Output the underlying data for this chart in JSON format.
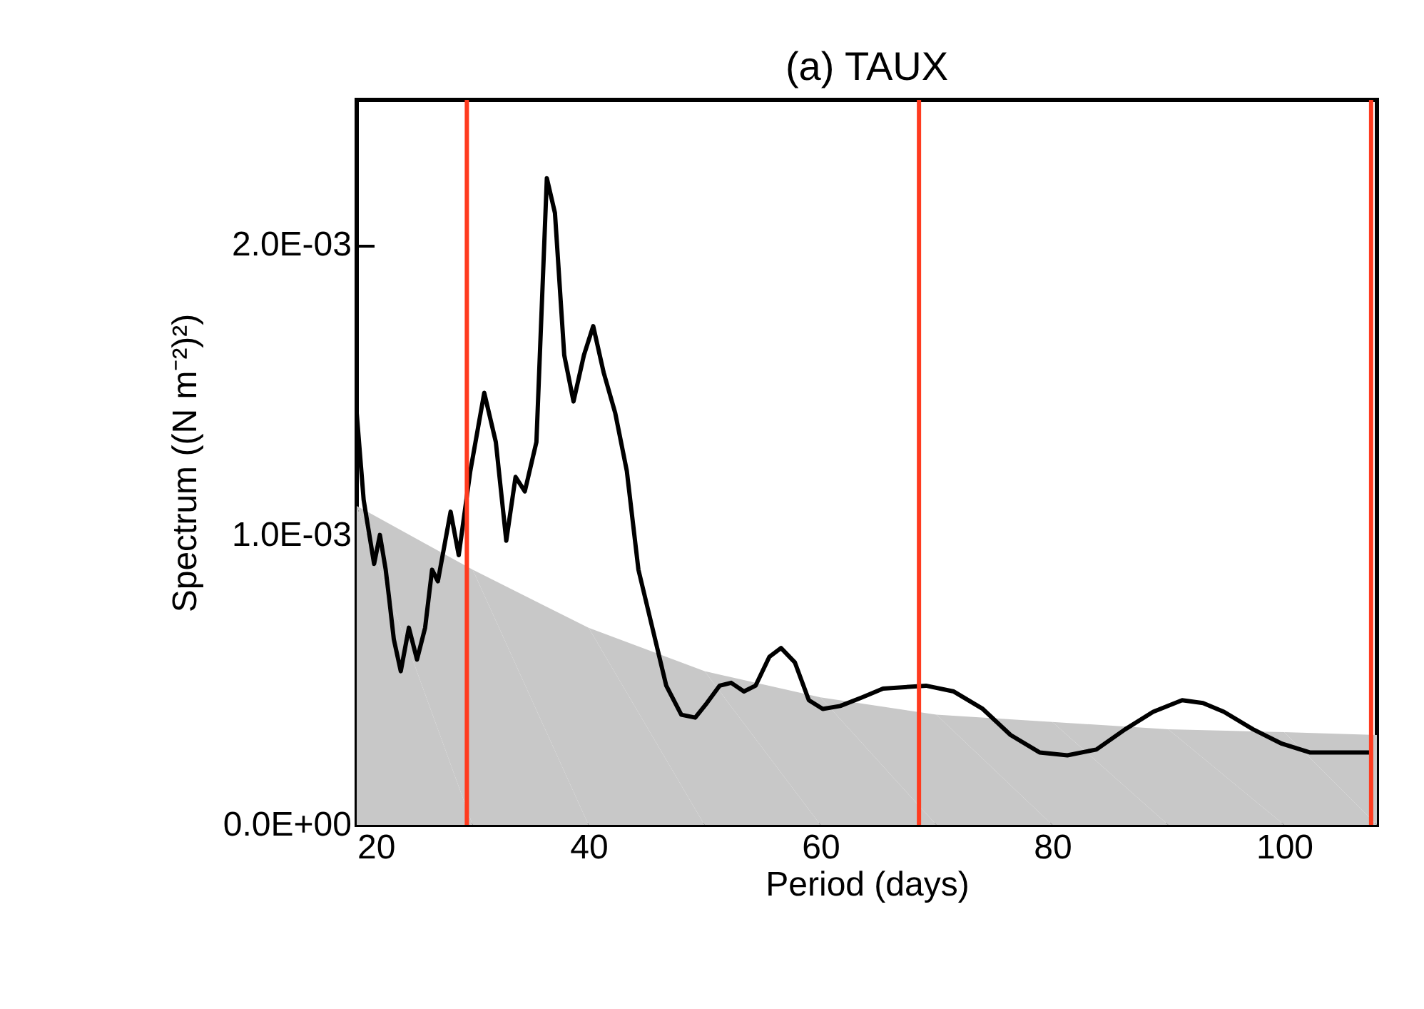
{
  "chart_data": {
    "type": "line",
    "title": "(a)  TAUX",
    "xlabel": "Period (days)",
    "ylabel": "Spectrum ((N m⁻²)²)",
    "xlim": [
      20,
      108
    ],
    "xticks": [
      20,
      40,
      60,
      80,
      100
    ],
    "ylim": [
      0,
      0.0025
    ],
    "yticks": [
      {
        "value": 0,
        "label": "0.0E+00"
      },
      {
        "value": 0.001,
        "label": "1.0E-03"
      },
      {
        "value": 0.002,
        "label": "2.0E-03"
      }
    ],
    "grid": false,
    "series": [
      {
        "type": "area",
        "color": "#c8c8c8",
        "x": [
          20,
          30,
          40,
          50,
          60,
          70,
          80,
          90,
          100,
          108
        ],
        "values": [
          0.0011,
          0.00088,
          0.00068,
          0.00053,
          0.00044,
          0.00038,
          0.000355,
          0.00033,
          0.00032,
          0.00031
        ]
      },
      {
        "color": "#000000",
        "x": [
          20,
          20.6,
          21.5,
          22,
          22.5,
          22.8,
          23.2,
          23.8,
          24.5,
          25.2,
          25.9,
          26.5,
          27,
          28.1,
          28.8,
          29.8,
          31,
          32,
          32.9,
          33.7,
          34.5,
          35.5,
          36.4,
          37.1,
          37.9,
          38.7,
          39.6,
          40.4,
          41.3,
          42.3,
          43.3,
          44.3,
          45.5,
          46.7,
          48,
          49.2,
          50.2,
          51.3,
          52.3,
          53.4,
          54.4,
          55.6,
          56.6,
          57.8,
          59,
          60.2,
          61.7,
          63.6,
          65.4,
          69.1,
          71.5,
          74,
          76.4,
          78.9,
          81.3,
          83.8,
          86.3,
          88.7,
          91.2,
          93,
          94.8,
          97.3,
          99.8,
          102.2,
          104.7,
          107.5
        ],
        "values": [
          0.00142,
          0.00112,
          0.0009,
          0.001,
          0.00088,
          0.00078,
          0.00064,
          0.00053,
          0.00068,
          0.00057,
          0.00068,
          0.00088,
          0.00084,
          0.00108,
          0.00093,
          0.00122,
          0.00149,
          0.00132,
          0.00098,
          0.0012,
          0.00115,
          0.00132,
          0.00223,
          0.00211,
          0.00162,
          0.00146,
          0.00162,
          0.00172,
          0.00156,
          0.00142,
          0.00122,
          0.00088,
          0.00068,
          0.00048,
          0.00038,
          0.00037,
          0.00042,
          0.00048,
          0.00049,
          0.00046,
          0.00048,
          0.00058,
          0.00061,
          0.00056,
          0.00043,
          0.0004,
          0.00041,
          0.00044,
          0.00047,
          0.00048,
          0.00046,
          0.0004,
          0.00031,
          0.00025,
          0.00024,
          0.00026,
          0.00033,
          0.00039,
          0.00043,
          0.00042,
          0.00039,
          0.00033,
          0.00028,
          0.00025,
          0.00025,
          0.00025
        ]
      }
    ],
    "ref_lines": [
      {
        "axis": "x",
        "value": 29.5,
        "color": "#ff3b1f"
      },
      {
        "axis": "x",
        "value": 68.5,
        "color": "#ff3b1f"
      },
      {
        "axis": "x",
        "value": 107.5,
        "color": "#ff3b1f"
      }
    ]
  }
}
